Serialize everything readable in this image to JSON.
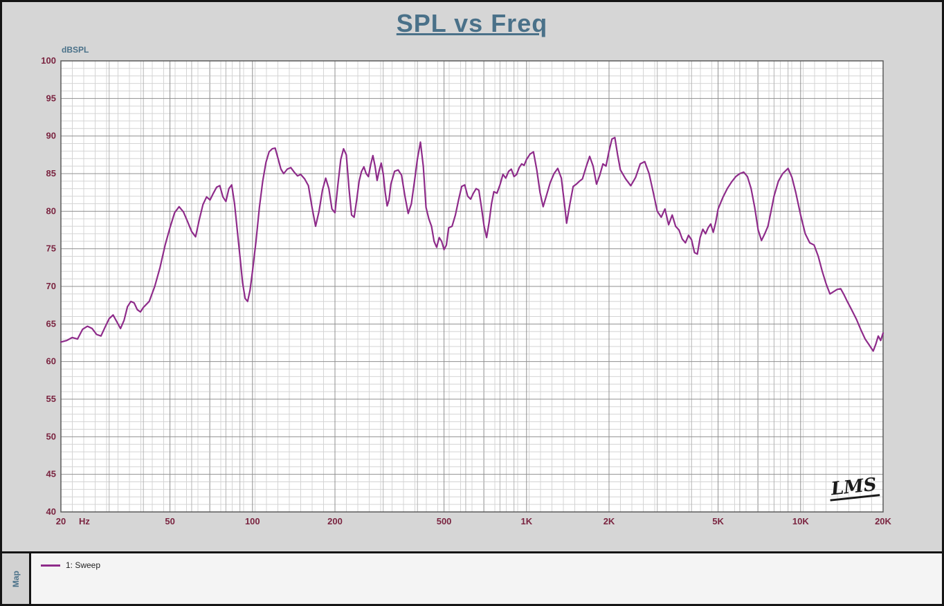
{
  "page": {
    "background": "#d6d6d6",
    "border_color": "#141414"
  },
  "signature": "LMS",
  "legend_panel": {
    "map_label": "Map",
    "item_label": "1: Sweep"
  },
  "chart_data": {
    "type": "line",
    "title": "SPL vs Freq",
    "title_color": "#4a7189",
    "ylabel": "dBSPL",
    "x_unit": "Hz",
    "x_scale": "log",
    "xlim": [
      20,
      20000
    ],
    "ylim": [
      40,
      100
    ],
    "y_major_step": 5,
    "y_minor_step": 1,
    "grid": {
      "on": true,
      "bg": "#ffffff",
      "minor_color": "#d4d4d4",
      "mid_color": "#b4b4b4",
      "major_color": "#8f8f8f",
      "border_color": "#5a5a5a"
    },
    "axis_label_color": "#7a2440",
    "x_major_ticks": [
      {
        "f": 20,
        "label": "20"
      },
      {
        "f": 50,
        "label": "50"
      },
      {
        "f": 100,
        "label": "100"
      },
      {
        "f": 200,
        "label": "200"
      },
      {
        "f": 500,
        "label": "500"
      },
      {
        "f": 1000,
        "label": "1K"
      },
      {
        "f": 2000,
        "label": "2K"
      },
      {
        "f": 5000,
        "label": "5K"
      },
      {
        "f": 10000,
        "label": "10K"
      },
      {
        "f": 20000,
        "label": "20K"
      }
    ],
    "x_mid_lines": [
      30,
      40,
      60,
      70,
      80,
      90,
      300,
      400,
      600,
      700,
      800,
      900,
      3000,
      4000,
      6000,
      7000,
      8000,
      9000
    ],
    "y_tick_labels": [
      "100",
      "95",
      "90",
      "85",
      "80",
      "75",
      "70",
      "65",
      "60",
      "55",
      "50",
      "45",
      "40"
    ],
    "legend": {
      "position": "bottom",
      "items": [
        {
          "label": "1: Sweep",
          "color": "#8e2b8a"
        }
      ]
    },
    "series": [
      {
        "name": "1: Sweep",
        "color": "#8e2b8a",
        "points": [
          [
            20,
            62.6
          ],
          [
            21,
            62.8
          ],
          [
            22,
            63.2
          ],
          [
            23,
            63.0
          ],
          [
            24,
            64.3
          ],
          [
            25,
            64.7
          ],
          [
            26,
            64.4
          ],
          [
            27,
            63.6
          ],
          [
            28,
            63.4
          ],
          [
            29,
            64.6
          ],
          [
            30,
            65.7
          ],
          [
            31,
            66.2
          ],
          [
            32,
            65.3
          ],
          [
            33,
            64.4
          ],
          [
            34,
            65.5
          ],
          [
            35,
            67.3
          ],
          [
            36,
            68.0
          ],
          [
            37,
            67.8
          ],
          [
            38,
            66.9
          ],
          [
            39,
            66.6
          ],
          [
            40,
            67.2
          ],
          [
            42,
            68.0
          ],
          [
            44,
            70.0
          ],
          [
            46,
            72.5
          ],
          [
            48,
            75.5
          ],
          [
            50,
            77.8
          ],
          [
            52,
            79.8
          ],
          [
            54,
            80.6
          ],
          [
            56,
            79.9
          ],
          [
            58,
            78.6
          ],
          [
            60,
            77.3
          ],
          [
            62,
            76.6
          ],
          [
            64,
            78.9
          ],
          [
            66,
            80.9
          ],
          [
            68,
            81.9
          ],
          [
            70,
            81.5
          ],
          [
            72,
            82.4
          ],
          [
            74,
            83.2
          ],
          [
            76,
            83.4
          ],
          [
            78,
            81.9
          ],
          [
            80,
            81.3
          ],
          [
            82,
            83.0
          ],
          [
            84,
            83.5
          ],
          [
            86,
            81.0
          ],
          [
            88,
            77.5
          ],
          [
            90,
            74.0
          ],
          [
            92,
            70.5
          ],
          [
            94,
            68.4
          ],
          [
            96,
            68.0
          ],
          [
            98,
            69.5
          ],
          [
            100,
            72.0
          ],
          [
            103,
            76.0
          ],
          [
            106,
            80.5
          ],
          [
            109,
            84.0
          ],
          [
            112,
            86.5
          ],
          [
            115,
            87.9
          ],
          [
            118,
            88.3
          ],
          [
            121,
            88.4
          ],
          [
            124,
            87.0
          ],
          [
            127,
            85.6
          ],
          [
            130,
            85.0
          ],
          [
            134,
            85.6
          ],
          [
            138,
            85.8
          ],
          [
            142,
            85.2
          ],
          [
            146,
            84.7
          ],
          [
            150,
            84.9
          ],
          [
            155,
            84.3
          ],
          [
            160,
            83.4
          ],
          [
            165,
            80.5
          ],
          [
            170,
            78.0
          ],
          [
            175,
            80.0
          ],
          [
            180,
            82.8
          ],
          [
            185,
            84.4
          ],
          [
            190,
            83.0
          ],
          [
            195,
            80.3
          ],
          [
            200,
            79.8
          ],
          [
            205,
            83.5
          ],
          [
            210,
            86.9
          ],
          [
            215,
            88.3
          ],
          [
            220,
            87.5
          ],
          [
            225,
            83.0
          ],
          [
            230,
            79.5
          ],
          [
            235,
            79.2
          ],
          [
            240,
            81.5
          ],
          [
            245,
            84.0
          ],
          [
            250,
            85.3
          ],
          [
            255,
            85.9
          ],
          [
            260,
            85.0
          ],
          [
            265,
            84.6
          ],
          [
            270,
            86.2
          ],
          [
            275,
            87.4
          ],
          [
            280,
            86.0
          ],
          [
            285,
            84.1
          ],
          [
            290,
            85.4
          ],
          [
            295,
            86.4
          ],
          [
            300,
            85.0
          ],
          [
            305,
            82.5
          ],
          [
            310,
            80.7
          ],
          [
            315,
            81.5
          ],
          [
            320,
            83.6
          ],
          [
            330,
            85.3
          ],
          [
            340,
            85.5
          ],
          [
            350,
            84.8
          ],
          [
            360,
            82.0
          ],
          [
            370,
            79.7
          ],
          [
            380,
            81.0
          ],
          [
            390,
            84.0
          ],
          [
            400,
            87.0
          ],
          [
            410,
            89.2
          ],
          [
            420,
            86.0
          ],
          [
            430,
            80.5
          ],
          [
            440,
            79.0
          ],
          [
            450,
            78.0
          ],
          [
            460,
            76.0
          ],
          [
            470,
            75.2
          ],
          [
            480,
            76.5
          ],
          [
            490,
            76.0
          ],
          [
            500,
            74.9
          ],
          [
            510,
            75.5
          ],
          [
            520,
            77.8
          ],
          [
            535,
            78.0
          ],
          [
            550,
            79.5
          ],
          [
            565,
            81.5
          ],
          [
            580,
            83.3
          ],
          [
            595,
            83.5
          ],
          [
            610,
            82.0
          ],
          [
            625,
            81.6
          ],
          [
            640,
            82.4
          ],
          [
            655,
            83.0
          ],
          [
            670,
            82.8
          ],
          [
            685,
            80.5
          ],
          [
            700,
            78.0
          ],
          [
            715,
            76.5
          ],
          [
            730,
            78.5
          ],
          [
            745,
            81.0
          ],
          [
            760,
            82.6
          ],
          [
            780,
            82.4
          ],
          [
            800,
            83.5
          ],
          [
            820,
            84.9
          ],
          [
            840,
            84.4
          ],
          [
            860,
            85.3
          ],
          [
            880,
            85.6
          ],
          [
            900,
            84.6
          ],
          [
            920,
            84.9
          ],
          [
            940,
            85.8
          ],
          [
            960,
            86.3
          ],
          [
            980,
            86.1
          ],
          [
            1000,
            86.9
          ],
          [
            1030,
            87.6
          ],
          [
            1060,
            87.9
          ],
          [
            1090,
            85.5
          ],
          [
            1120,
            82.5
          ],
          [
            1150,
            80.6
          ],
          [
            1180,
            82.0
          ],
          [
            1220,
            83.8
          ],
          [
            1260,
            85.0
          ],
          [
            1300,
            85.7
          ],
          [
            1340,
            84.4
          ],
          [
            1380,
            80.5
          ],
          [
            1400,
            78.4
          ],
          [
            1440,
            81.0
          ],
          [
            1480,
            83.3
          ],
          [
            1520,
            83.6
          ],
          [
            1560,
            84.0
          ],
          [
            1600,
            84.3
          ],
          [
            1650,
            85.9
          ],
          [
            1700,
            87.3
          ],
          [
            1750,
            86.0
          ],
          [
            1800,
            83.6
          ],
          [
            1850,
            84.8
          ],
          [
            1900,
            86.3
          ],
          [
            1950,
            86.0
          ],
          [
            2000,
            88.0
          ],
          [
            2050,
            89.6
          ],
          [
            2100,
            89.8
          ],
          [
            2150,
            87.5
          ],
          [
            2200,
            85.5
          ],
          [
            2300,
            84.3
          ],
          [
            2400,
            83.4
          ],
          [
            2500,
            84.5
          ],
          [
            2600,
            86.3
          ],
          [
            2700,
            86.6
          ],
          [
            2800,
            85.0
          ],
          [
            2900,
            82.5
          ],
          [
            3000,
            80.0
          ],
          [
            3100,
            79.2
          ],
          [
            3200,
            80.3
          ],
          [
            3300,
            78.2
          ],
          [
            3400,
            79.5
          ],
          [
            3500,
            78.0
          ],
          [
            3600,
            77.5
          ],
          [
            3700,
            76.3
          ],
          [
            3800,
            75.8
          ],
          [
            3900,
            76.8
          ],
          [
            4000,
            76.2
          ],
          [
            4100,
            74.5
          ],
          [
            4200,
            74.3
          ],
          [
            4300,
            76.5
          ],
          [
            4400,
            77.6
          ],
          [
            4500,
            77.0
          ],
          [
            4600,
            77.8
          ],
          [
            4700,
            78.3
          ],
          [
            4800,
            77.2
          ],
          [
            4900,
            78.5
          ],
          [
            5000,
            80.3
          ],
          [
            5200,
            81.8
          ],
          [
            5400,
            83.0
          ],
          [
            5600,
            83.9
          ],
          [
            5800,
            84.6
          ],
          [
            6000,
            85.0
          ],
          [
            6200,
            85.2
          ],
          [
            6400,
            84.6
          ],
          [
            6600,
            83.0
          ],
          [
            6800,
            80.5
          ],
          [
            7000,
            77.5
          ],
          [
            7200,
            76.1
          ],
          [
            7400,
            77.0
          ],
          [
            7600,
            78.0
          ],
          [
            7800,
            80.0
          ],
          [
            8000,
            82.0
          ],
          [
            8300,
            84.0
          ],
          [
            8600,
            85.0
          ],
          [
            9000,
            85.7
          ],
          [
            9300,
            84.5
          ],
          [
            9600,
            82.5
          ],
          [
            10000,
            79.5
          ],
          [
            10400,
            77.0
          ],
          [
            10800,
            75.8
          ],
          [
            11200,
            75.5
          ],
          [
            11600,
            74.0
          ],
          [
            12000,
            72.0
          ],
          [
            12400,
            70.3
          ],
          [
            12800,
            69.0
          ],
          [
            13200,
            69.3
          ],
          [
            13600,
            69.6
          ],
          [
            14000,
            69.7
          ],
          [
            14400,
            68.9
          ],
          [
            14800,
            68.0
          ],
          [
            15200,
            67.2
          ],
          [
            16000,
            65.6
          ],
          [
            16600,
            64.2
          ],
          [
            17200,
            63.0
          ],
          [
            17800,
            62.2
          ],
          [
            18400,
            61.4
          ],
          [
            18800,
            62.3
          ],
          [
            19200,
            63.4
          ],
          [
            19600,
            62.8
          ],
          [
            20000,
            63.8
          ]
        ]
      }
    ]
  }
}
